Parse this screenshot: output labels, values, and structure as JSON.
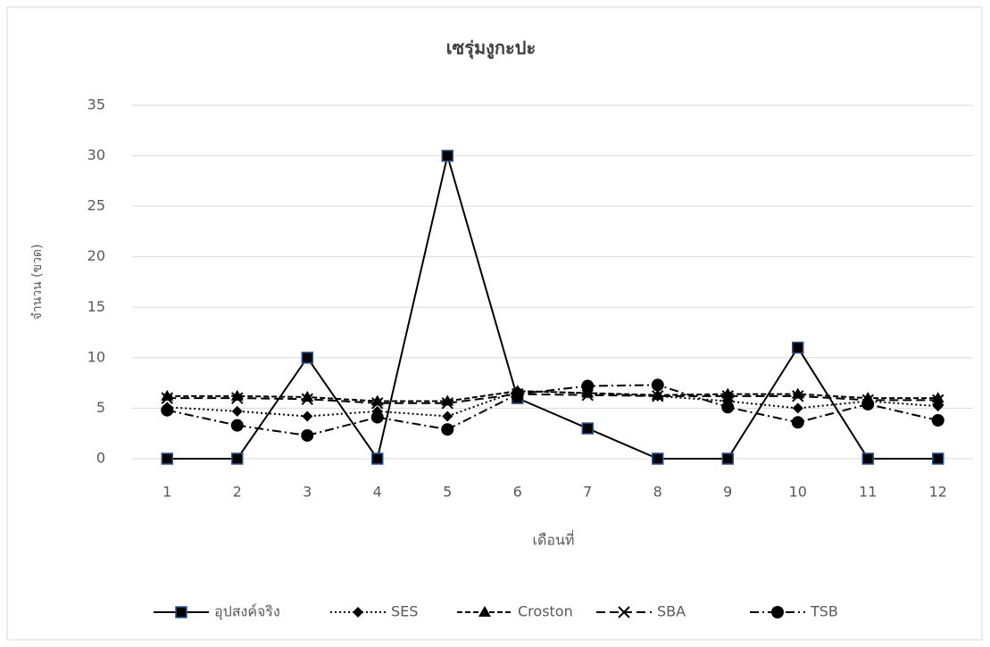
{
  "chart_data": {
    "type": "line",
    "title": "เซรุ่มงูกะปะ",
    "x_label": "เดือนที่",
    "y_label": "จำนวน (ขวด)",
    "categories": [
      "1",
      "2",
      "3",
      "4",
      "5",
      "6",
      "7",
      "8",
      "9",
      "10",
      "11",
      "12"
    ],
    "series": [
      {
        "name": "อุปสงค์จริง",
        "color": "#000000",
        "marker": "square",
        "dash": "solid",
        "values": [
          0,
          0,
          10,
          0,
          30,
          6,
          3,
          0,
          0,
          11,
          0,
          0
        ]
      },
      {
        "name": "SES",
        "color": "#000000",
        "marker": "diamond",
        "dash": "dotted",
        "values": [
          5.1,
          4.7,
          4.2,
          4.7,
          4.2,
          6.7,
          6.5,
          6.2,
          5.7,
          5.0,
          5.7,
          5.2
        ]
      },
      {
        "name": "Croston",
        "color": "#000000",
        "marker": "triangle",
        "dash": "dashed",
        "values": [
          6.2,
          6.2,
          6.1,
          5.7,
          5.7,
          6.7,
          6.5,
          6.3,
          6.4,
          6.4,
          6.0,
          6.0
        ]
      },
      {
        "name": "SBA",
        "color": "#000000",
        "marker": "x",
        "dash": "long-dash",
        "values": [
          6.0,
          6.0,
          5.9,
          5.5,
          5.5,
          6.4,
          6.3,
          6.2,
          6.2,
          6.2,
          5.8,
          5.8
        ]
      },
      {
        "name": "TSB",
        "color": "#000000",
        "marker": "circle",
        "dash": "dash-dot",
        "values": [
          4.8,
          3.3,
          2.3,
          4.1,
          2.9,
          6.4,
          7.2,
          7.3,
          5.1,
          3.6,
          5.4,
          3.8
        ]
      }
    ],
    "ylim": [
      0,
      35
    ],
    "yticks": [
      0,
      5,
      10,
      15,
      20,
      25,
      30,
      35
    ],
    "grid": true,
    "legend": "bottom"
  }
}
